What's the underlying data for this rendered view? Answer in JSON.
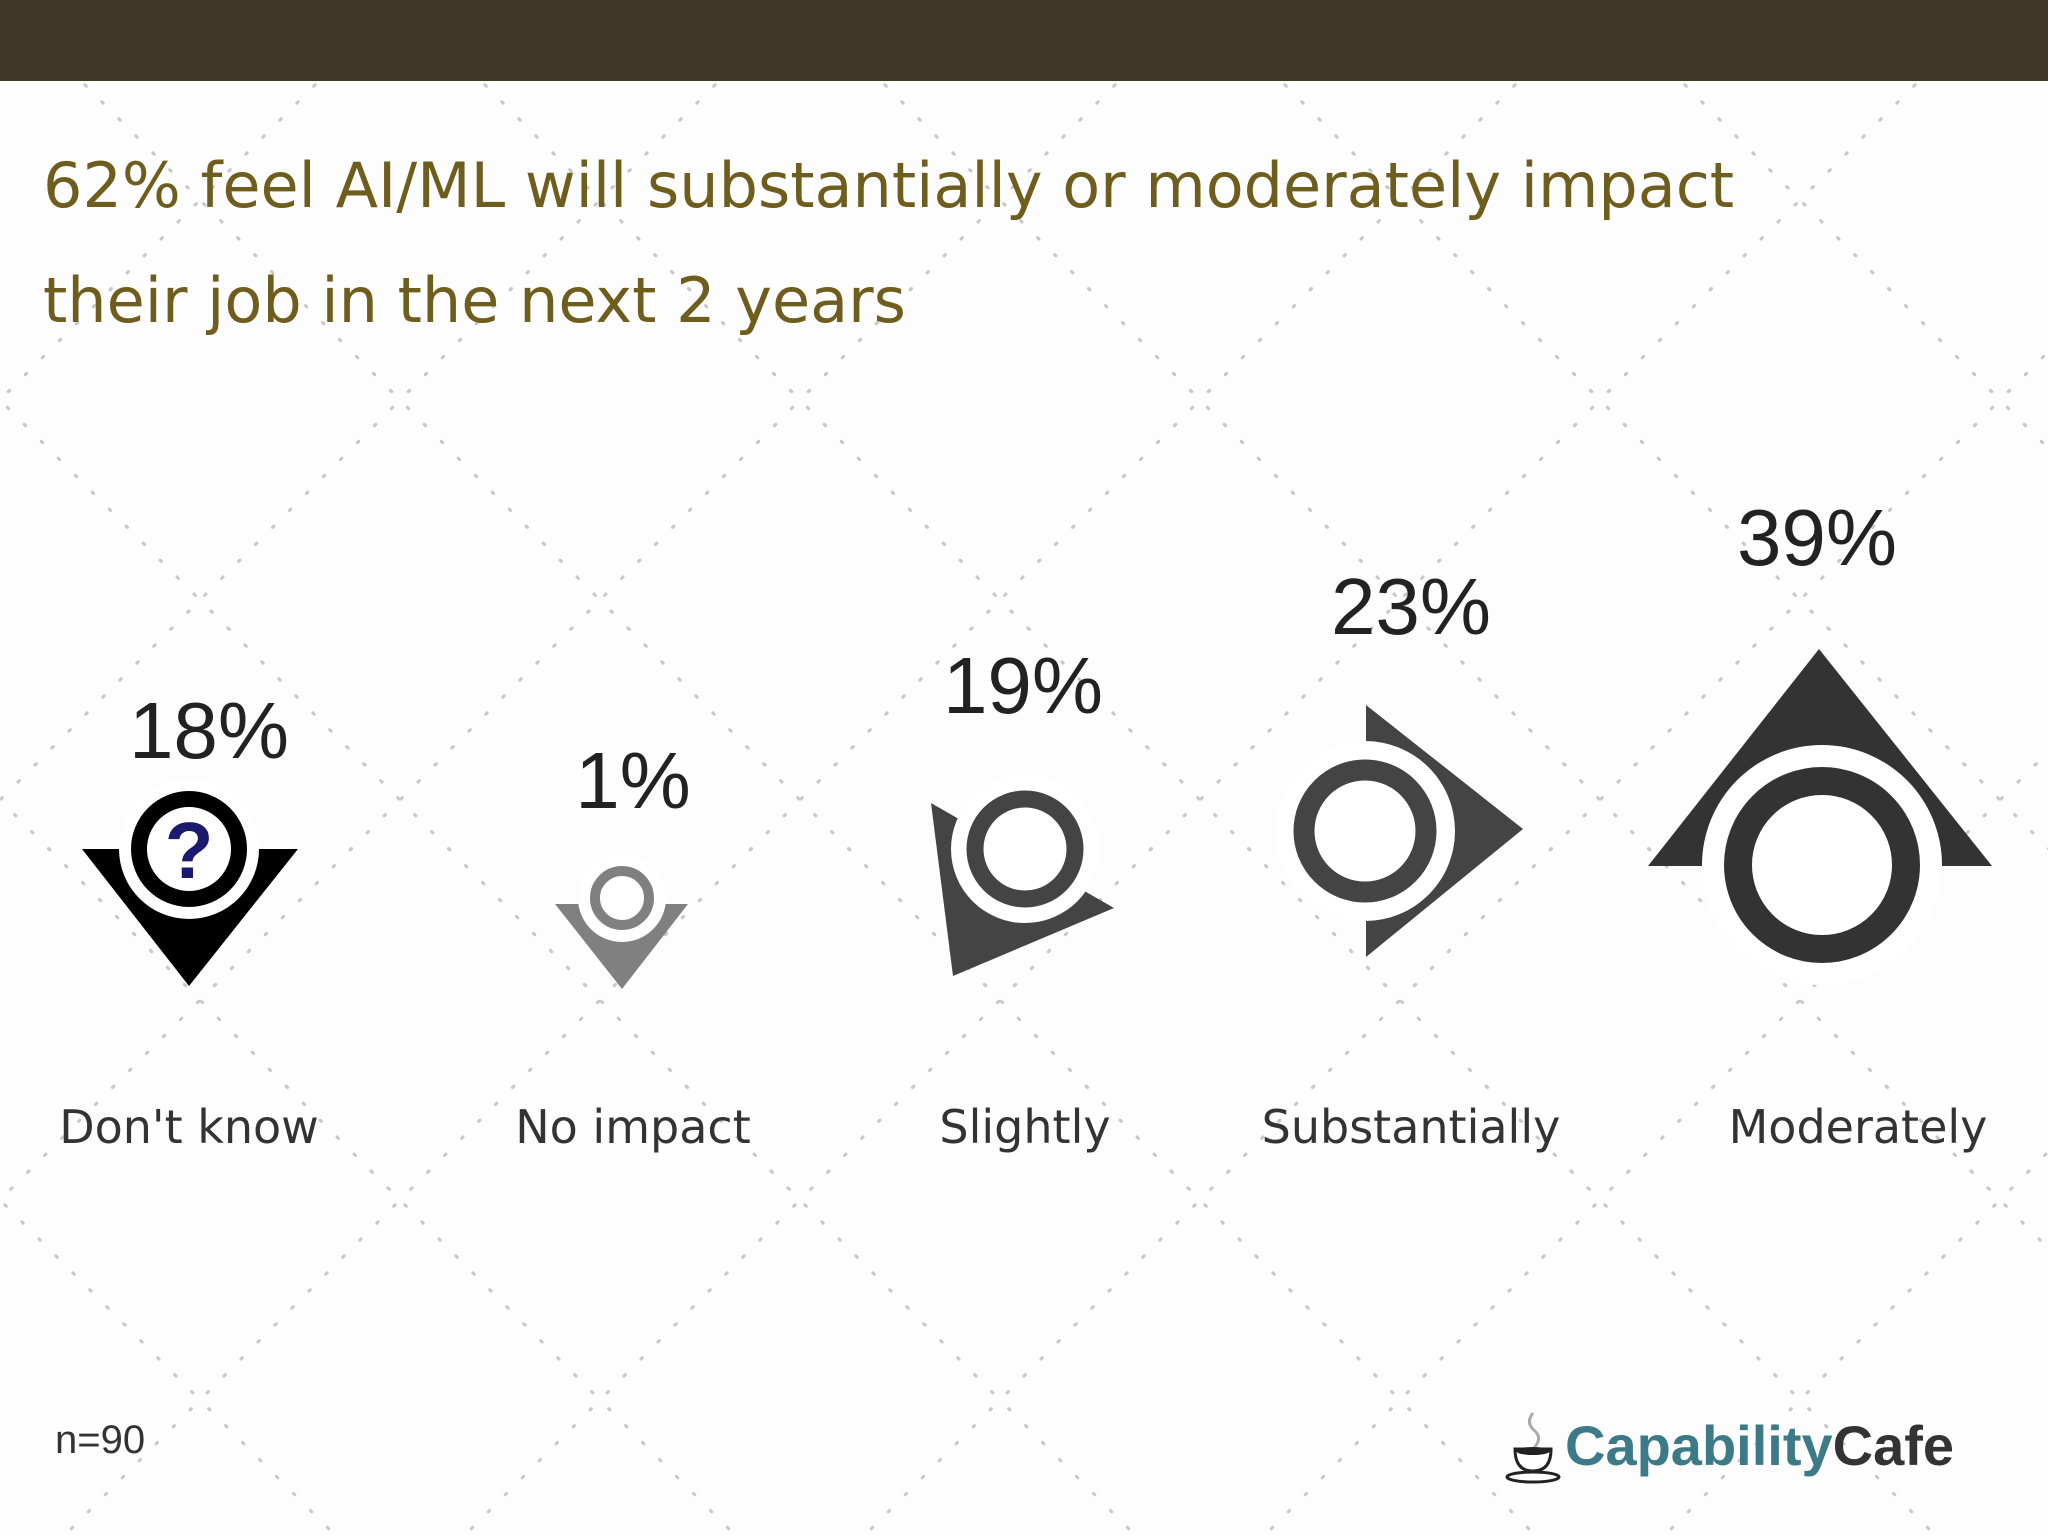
{
  "title": "62% feel AI/ML will substantially or moderately impact their job in the next 2 years",
  "footnote": "n=90",
  "logo": {
    "part1": "Capability",
    "part2": "Cafe"
  },
  "colors": {
    "topbar": "#3f3829",
    "title": "#6e5d1c",
    "dont_know": "#000000",
    "no_impact": "#808080",
    "others": "#444444",
    "question_mark": "#1a1a6e"
  },
  "chart_data": {
    "type": "bar",
    "title": "62% feel AI/ML will substantially or moderately impact their job in the next 2 years",
    "categories": [
      "Don't know",
      "No impact",
      "Slightly",
      "Substantially",
      "Moderately"
    ],
    "values": [
      18,
      1,
      19,
      23,
      39
    ],
    "labels": [
      "18%",
      "1%",
      "19%",
      "23%",
      "39%"
    ],
    "unit": "%",
    "xlabel": "",
    "ylabel": ""
  }
}
